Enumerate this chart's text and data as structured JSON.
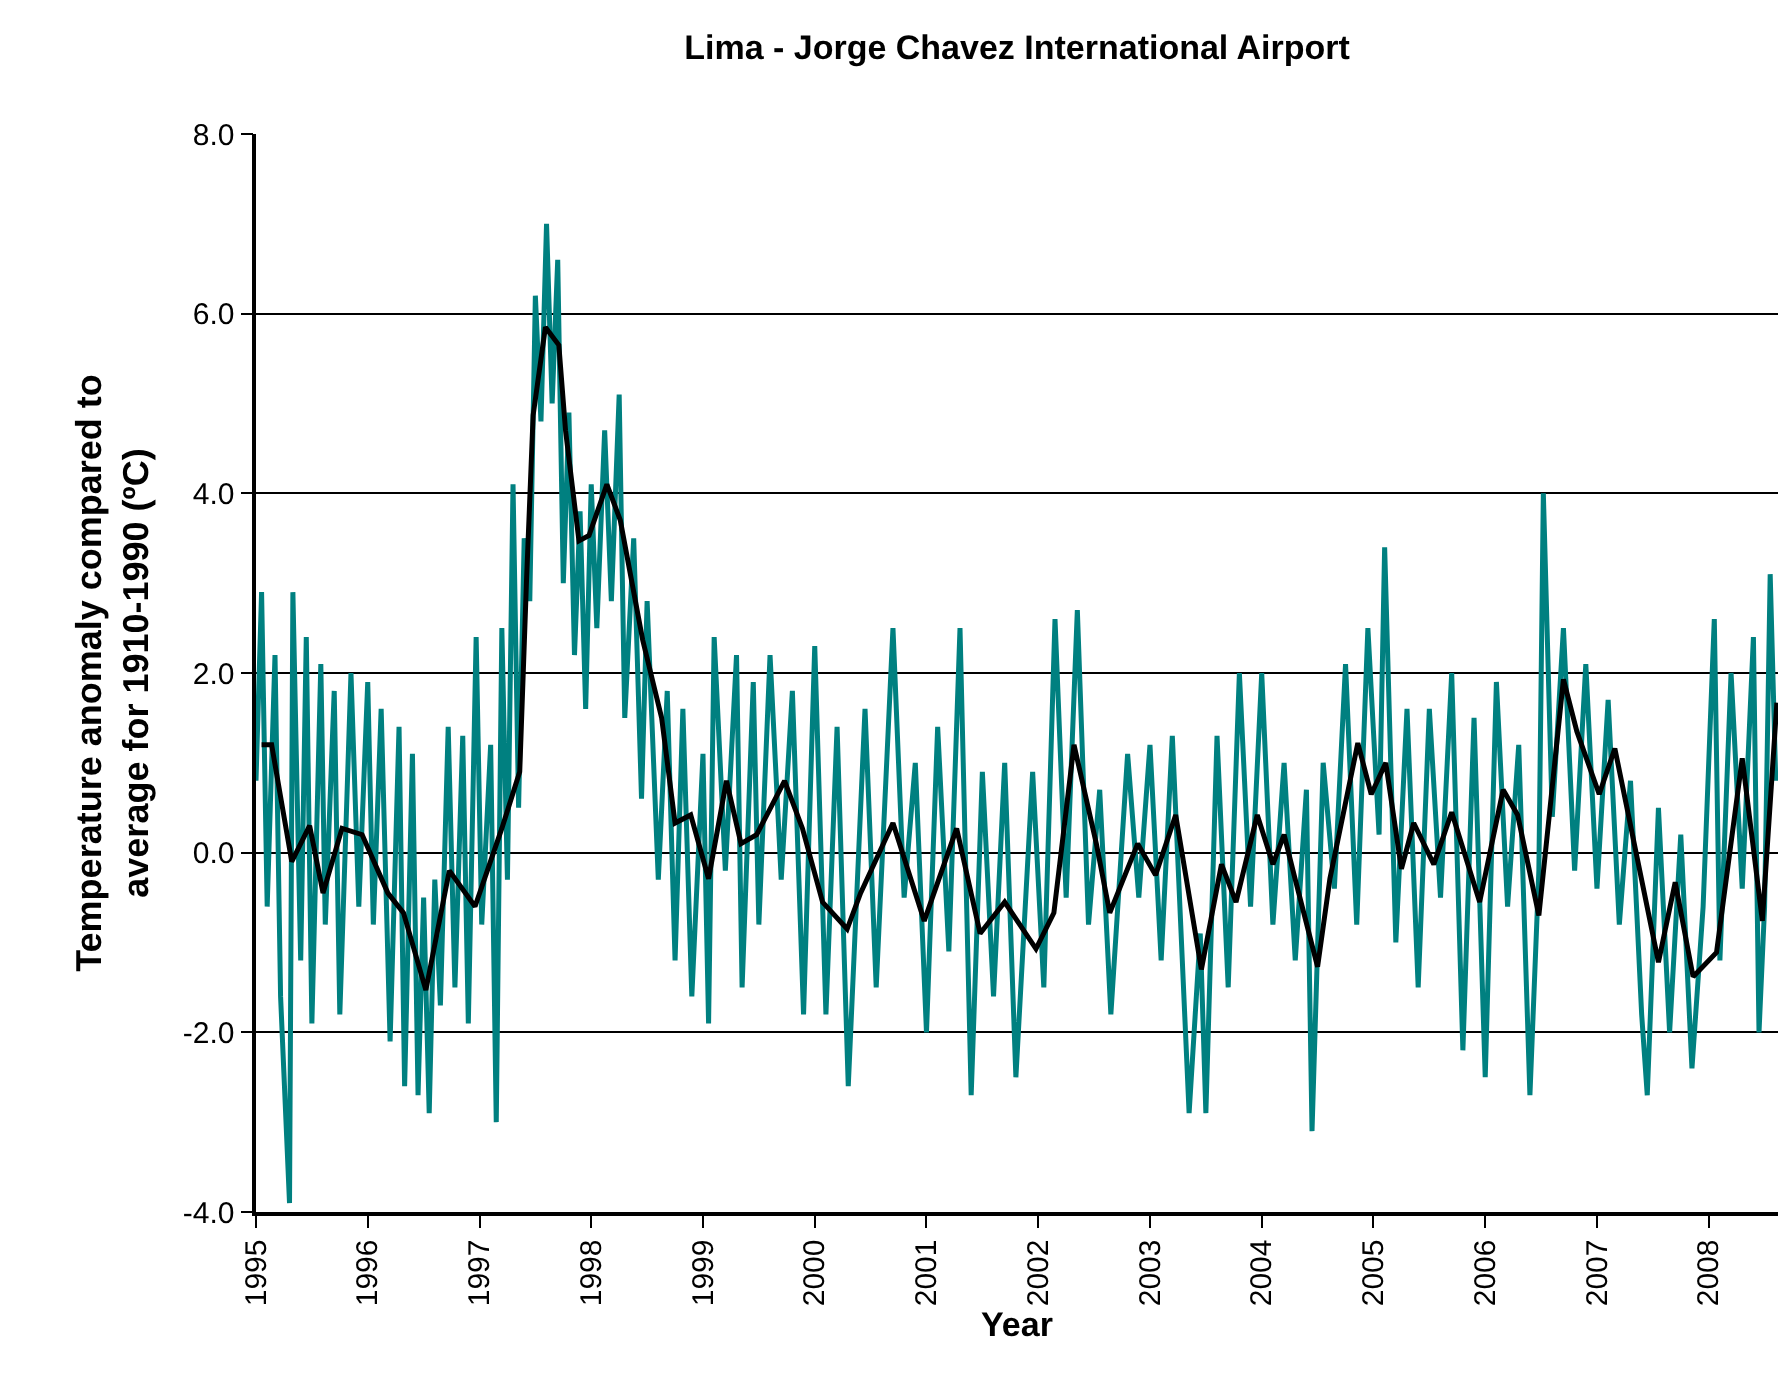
{
  "chart_data": {
    "type": "line",
    "title": "Lima - Jorge Chavez International Airport",
    "xlabel": "Year",
    "ylabel": "Temperature anomaly compared to\naverage for 1910-1990 (ºC)",
    "xlim": [
      1995,
      2008.62
    ],
    "xticks": [
      1995,
      1996,
      1997,
      1998,
      1999,
      2000,
      2001,
      2002,
      2003,
      2004,
      2005,
      2006,
      2007,
      2008
    ],
    "ylim": [
      -4,
      8
    ],
    "yticks": [
      {
        "value": -4,
        "label": "-4.0"
      },
      {
        "value": -2,
        "label": "-2.0"
      },
      {
        "value": 0,
        "label": "0.0"
      },
      {
        "value": 2,
        "label": "2.0"
      },
      {
        "value": 4,
        "label": "4.0"
      },
      {
        "value": 6,
        "label": "6.0"
      },
      {
        "value": 8,
        "label": "8.0"
      }
    ],
    "grid": "y",
    "marker": "none",
    "line_style": "solid",
    "series": [
      {
        "color": "#008080",
        "x": [
          1995.0,
          1995.05,
          1995.1,
          1995.17,
          1995.22,
          1995.3,
          1995.33,
          1995.4,
          1995.45,
          1995.5,
          1995.58,
          1995.62,
          1995.7,
          1995.75,
          1995.85,
          1995.92,
          1996.0,
          1996.05,
          1996.12,
          1996.2,
          1996.28,
          1996.33,
          1996.4,
          1996.45,
          1996.5,
          1996.55,
          1996.6,
          1996.65,
          1996.72,
          1996.78,
          1996.85,
          1996.9,
          1996.97,
          1997.02,
          1997.1,
          1997.15,
          1997.2,
          1997.25,
          1997.3,
          1997.35,
          1997.4,
          1997.45,
          1997.5,
          1997.55,
          1997.6,
          1997.65,
          1997.7,
          1997.75,
          1997.8,
          1997.85,
          1997.9,
          1997.95,
          1998.0,
          1998.05,
          1998.12,
          1998.18,
          1998.25,
          1998.3,
          1998.38,
          1998.45,
          1998.5,
          1998.6,
          1998.68,
          1998.75,
          1998.82,
          1998.9,
          1999.0,
          1999.05,
          1999.1,
          1999.2,
          1999.3,
          1999.35,
          1999.45,
          1999.5,
          1999.6,
          1999.7,
          1999.8,
          1999.9,
          2000.0,
          2000.1,
          2000.2,
          2000.3,
          2000.45,
          2000.55,
          2000.7,
          2000.8,
          2000.9,
          2001.0,
          2001.1,
          2001.2,
          2001.3,
          2001.4,
          2001.5,
          2001.6,
          2001.7,
          2001.8,
          2001.95,
          2002.05,
          2002.15,
          2002.25,
          2002.35,
          2002.45,
          2002.55,
          2002.65,
          2002.8,
          2002.9,
          2003.0,
          2003.1,
          2003.2,
          2003.35,
          2003.45,
          2003.5,
          2003.6,
          2003.7,
          2003.8,
          2003.9,
          2004.0,
          2004.1,
          2004.2,
          2004.3,
          2004.4,
          2004.45,
          2004.55,
          2004.65,
          2004.75,
          2004.85,
          2004.95,
          2005.05,
          2005.1,
          2005.2,
          2005.3,
          2005.4,
          2005.5,
          2005.6,
          2005.7,
          2005.8,
          2005.9,
          2006.0,
          2006.1,
          2006.2,
          2006.3,
          2006.4,
          2006.48,
          2006.52,
          2006.6,
          2006.7,
          2006.8,
          2006.9,
          2007.0,
          2007.1,
          2007.2,
          2007.3,
          2007.4,
          2007.45,
          2007.55,
          2007.65,
          2007.75,
          2007.85,
          2007.95,
          2008.05,
          2008.1,
          2008.2,
          2008.3,
          2008.4,
          2008.45,
          2008.5,
          2008.55,
          2008.6
        ],
        "values": [
          0.8,
          2.9,
          -0.6,
          2.2,
          -1.6,
          -3.9,
          2.9,
          -1.2,
          2.4,
          -1.9,
          2.1,
          -0.8,
          1.8,
          -1.8,
          2.0,
          -0.6,
          1.9,
          -0.8,
          1.6,
          -2.1,
          1.4,
          -2.6,
          1.1,
          -2.7,
          -0.5,
          -2.9,
          -0.3,
          -1.7,
          1.4,
          -1.5,
          1.3,
          -1.9,
          2.4,
          -0.8,
          1.2,
          -3.0,
          2.5,
          -0.3,
          4.1,
          0.5,
          3.5,
          2.8,
          6.2,
          4.8,
          7.0,
          5.0,
          6.6,
          3.0,
          4.9,
          2.2,
          3.8,
          1.6,
          4.1,
          2.5,
          4.7,
          2.8,
          5.1,
          1.5,
          3.5,
          0.6,
          2.8,
          -0.3,
          1.8,
          -1.2,
          1.6,
          -1.6,
          1.1,
          -1.9,
          2.4,
          -0.2,
          2.2,
          -1.5,
          1.9,
          -0.8,
          2.2,
          -0.3,
          1.8,
          -1.8,
          2.3,
          -1.8,
          1.4,
          -2.6,
          1.6,
          -1.5,
          2.5,
          -0.5,
          1.0,
          -2.0,
          1.4,
          -1.1,
          2.5,
          -2.7,
          0.9,
          -1.6,
          1.0,
          -2.5,
          0.9,
          -1.5,
          2.6,
          -0.5,
          2.7,
          -0.8,
          0.7,
          -1.8,
          1.1,
          -0.5,
          1.2,
          -1.2,
          1.3,
          -2.9,
          -0.9,
          -2.9,
          1.3,
          -1.5,
          2.0,
          -0.6,
          2.0,
          -0.8,
          1.0,
          -1.2,
          0.7,
          -3.1,
          1.0,
          -0.4,
          2.1,
          -0.8,
          2.5,
          0.2,
          3.4,
          -1.0,
          1.6,
          -1.5,
          1.6,
          -0.5,
          2.0,
          -2.2,
          1.5,
          -2.5,
          1.9,
          -0.6,
          1.2,
          -2.7,
          -0.2,
          4.0,
          0.4,
          2.5,
          -0.2,
          2.1,
          -0.4,
          1.7,
          -0.8,
          0.8,
          -1.8,
          -2.7,
          0.5,
          -2.0,
          0.2,
          -2.4,
          -0.6,
          2.6,
          -1.2,
          2.0,
          -0.4,
          2.4,
          -2.0,
          -0.6,
          3.1,
          0.8
        ]
      },
      {
        "color": "#000000",
        "x": [
          1995.05,
          1995.14,
          1995.32,
          1995.48,
          1995.6,
          1995.77,
          1995.95,
          1996.18,
          1996.32,
          1996.52,
          1996.73,
          1996.96,
          1997.2,
          1997.36,
          1997.42,
          1997.48,
          1997.59,
          1997.71,
          1997.77,
          1997.89,
          1997.98,
          1998.14,
          1998.26,
          1998.46,
          1998.63,
          1998.75,
          1998.89,
          1999.05,
          1999.21,
          1999.34,
          1999.48,
          1999.73,
          1999.89,
          2000.07,
          2000.29,
          2000.41,
          2000.7,
          2000.98,
          2001.27,
          2001.48,
          2001.7,
          2001.98,
          2002.14,
          2002.32,
          2002.52,
          2002.64,
          2002.89,
          2003.05,
          2003.23,
          2003.46,
          2003.64,
          2003.77,
          2003.96,
          2004.1,
          2004.2,
          2004.29,
          2004.5,
          2004.61,
          2004.86,
          2004.98,
          2005.11,
          2005.25,
          2005.36,
          2005.54,
          2005.7,
          2005.95,
          2006.16,
          2006.29,
          2006.48,
          2006.7,
          2006.82,
          2007.02,
          2007.16,
          2007.55,
          2007.7,
          2007.86,
          2008.07,
          2008.3,
          2008.48,
          2008.61
        ],
        "values": [
          1.2,
          1.2,
          -0.1,
          0.3,
          -0.45,
          0.27,
          0.2,
          -0.45,
          -0.67,
          -1.53,
          -0.2,
          -0.6,
          0.27,
          0.9,
          3.0,
          4.87,
          5.85,
          5.65,
          4.7,
          3.47,
          3.53,
          4.1,
          3.7,
          2.37,
          1.5,
          0.33,
          0.42,
          -0.29,
          0.8,
          0.1,
          0.2,
          0.8,
          0.27,
          -0.55,
          -0.85,
          -0.45,
          0.33,
          -0.76,
          0.27,
          -0.9,
          -0.55,
          -1.07,
          -0.67,
          1.2,
          0.1,
          -0.67,
          0.1,
          -0.25,
          0.42,
          -1.3,
          -0.13,
          -0.55,
          0.42,
          -0.13,
          0.2,
          -0.25,
          -1.27,
          -0.29,
          1.22,
          0.65,
          1.0,
          -0.18,
          0.33,
          -0.13,
          0.45,
          -0.55,
          0.7,
          0.42,
          -0.7,
          1.93,
          1.35,
          0.65,
          1.16,
          -1.22,
          -0.33,
          -1.38,
          -1.11,
          1.05,
          -0.76,
          1.67
        ]
      }
    ]
  }
}
